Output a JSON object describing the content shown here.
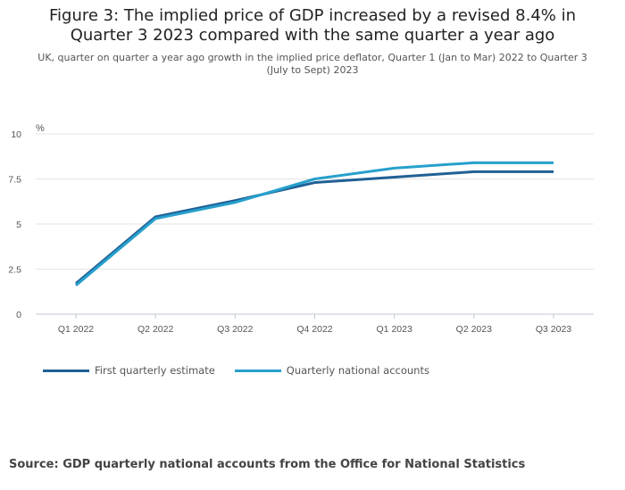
{
  "title": "Figure 3: The implied price of GDP increased by a revised 8.4% in Quarter 3 2023 compared with the same quarter a year ago",
  "subtitle": "UK, quarter on quarter a year ago growth in the implied price deflator, Quarter 1 (Jan to Mar) 2022 to Quarter 3 (July to Sept) 2023",
  "source": "Source: GDP quarterly national accounts from the Office for National Statistics",
  "chart_data": {
    "type": "line",
    "title": "Figure 3: The implied price of GDP increased by a revised 8.4% in Quarter 3 2023 compared with the same quarter a year ago",
    "xlabel": "",
    "ylabel": "%",
    "categories": [
      "Q1 2022",
      "Q2 2022",
      "Q3 2022",
      "Q4 2022",
      "Q1 2023",
      "Q2 2023",
      "Q3 2023"
    ],
    "ylim": [
      0,
      10
    ],
    "yticks": [
      "0",
      "2.5",
      "5",
      "7.5",
      "10"
    ],
    "grid": true,
    "legend_position": "bottom-left",
    "series": [
      {
        "name": "First quarterly estimate",
        "color": "#206095",
        "values": [
          1.7,
          5.4,
          6.3,
          7.3,
          7.6,
          7.9,
          7.9
        ]
      },
      {
        "name": "Quarterly national accounts",
        "color": "#27a0cc",
        "values": [
          1.6,
          5.3,
          6.2,
          7.5,
          8.1,
          8.4,
          8.4
        ]
      }
    ]
  }
}
